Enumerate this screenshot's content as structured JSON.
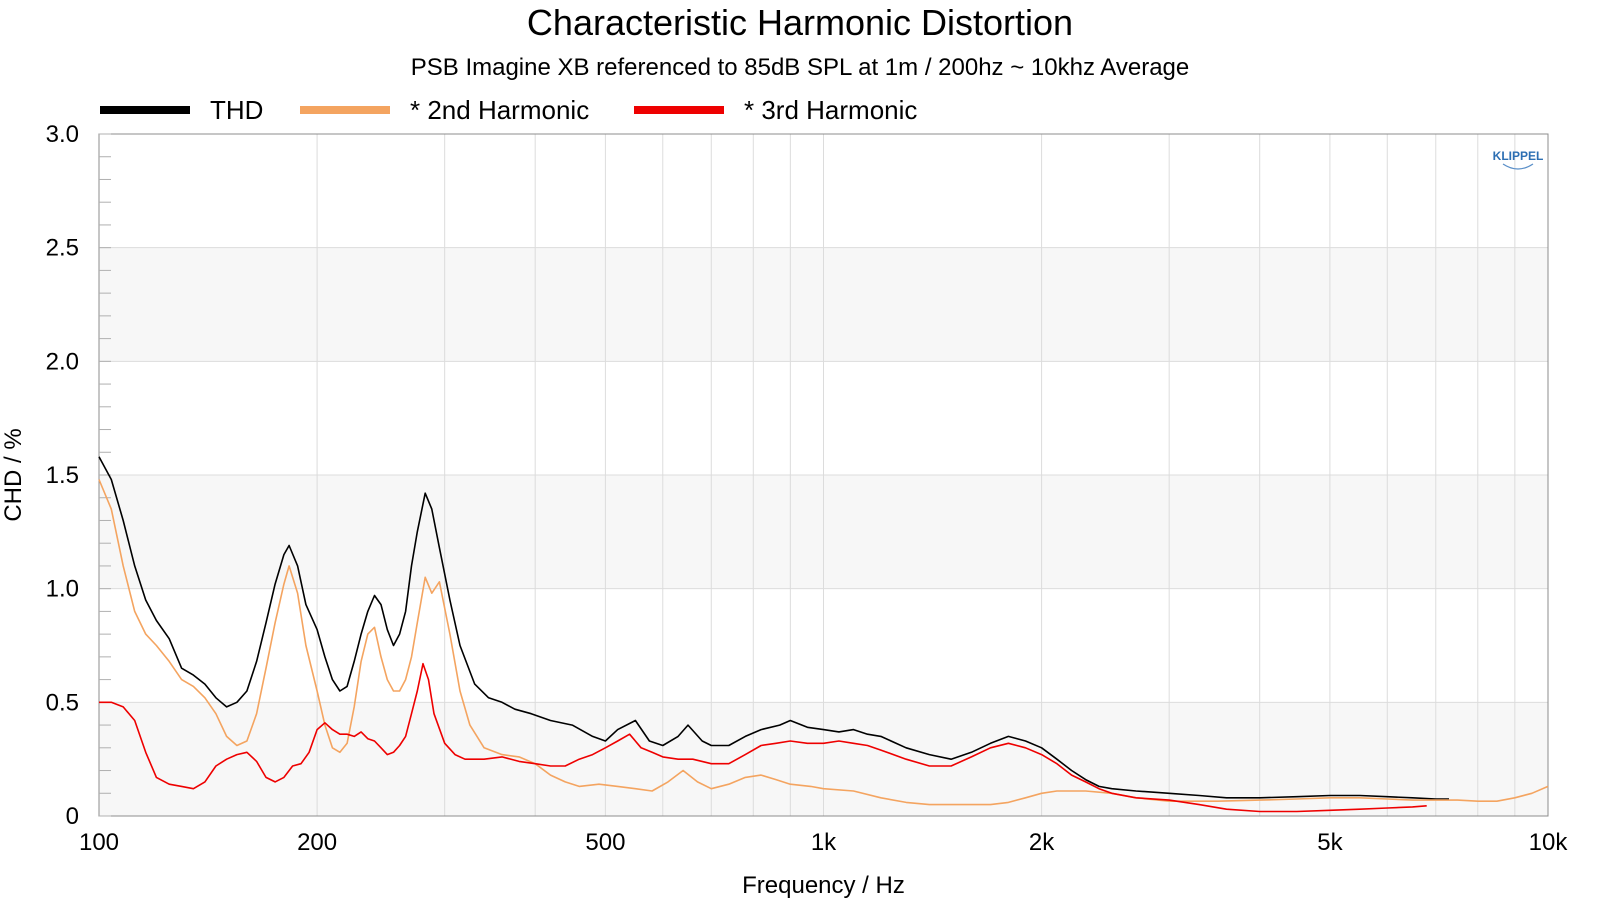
{
  "chart_data": {
    "type": "line",
    "title": "Characteristic Harmonic Distortion",
    "subtitle": "PSB Imagine XB referenced to 85dB SPL at 1m / 200hz ~ 10khz Average",
    "xlabel": "Frequency / Hz",
    "ylabel": "CHD / %",
    "xscale": "log",
    "xlim": [
      100,
      10000
    ],
    "ylim": [
      0,
      3.0
    ],
    "xticks": [
      {
        "value": 100,
        "label": "100"
      },
      {
        "value": 200,
        "label": "200"
      },
      {
        "value": 500,
        "label": "500"
      },
      {
        "value": 1000,
        "label": "1k"
      },
      {
        "value": 2000,
        "label": "2k"
      },
      {
        "value": 5000,
        "label": "5k"
      },
      {
        "value": 10000,
        "label": "10k"
      }
    ],
    "yticks": [
      {
        "value": 0,
        "label": "0"
      },
      {
        "value": 0.5,
        "label": "0.5"
      },
      {
        "value": 1.0,
        "label": "1.0"
      },
      {
        "value": 1.5,
        "label": "1.5"
      },
      {
        "value": 2.0,
        "label": "2.0"
      },
      {
        "value": 2.5,
        "label": "2.5"
      },
      {
        "value": 3.0,
        "label": "3.0"
      }
    ],
    "grid": true,
    "legend_position": "top-left",
    "logo_text": "KLIPPEL",
    "series": [
      {
        "name": "THD",
        "color": "#000000",
        "points": [
          [
            100,
            1.58
          ],
          [
            104,
            1.48
          ],
          [
            108,
            1.3
          ],
          [
            112,
            1.1
          ],
          [
            116,
            0.95
          ],
          [
            120,
            0.86
          ],
          [
            125,
            0.78
          ],
          [
            130,
            0.65
          ],
          [
            135,
            0.62
          ],
          [
            140,
            0.58
          ],
          [
            145,
            0.52
          ],
          [
            150,
            0.48
          ],
          [
            155,
            0.5
          ],
          [
            160,
            0.55
          ],
          [
            165,
            0.68
          ],
          [
            170,
            0.85
          ],
          [
            175,
            1.02
          ],
          [
            180,
            1.15
          ],
          [
            183,
            1.19
          ],
          [
            188,
            1.1
          ],
          [
            193,
            0.93
          ],
          [
            200,
            0.82
          ],
          [
            205,
            0.7
          ],
          [
            210,
            0.6
          ],
          [
            215,
            0.55
          ],
          [
            220,
            0.57
          ],
          [
            225,
            0.68
          ],
          [
            230,
            0.8
          ],
          [
            235,
            0.9
          ],
          [
            240,
            0.97
          ],
          [
            245,
            0.93
          ],
          [
            250,
            0.82
          ],
          [
            255,
            0.75
          ],
          [
            260,
            0.8
          ],
          [
            265,
            0.9
          ],
          [
            270,
            1.1
          ],
          [
            275,
            1.25
          ],
          [
            282,
            1.42
          ],
          [
            288,
            1.35
          ],
          [
            295,
            1.18
          ],
          [
            305,
            0.95
          ],
          [
            315,
            0.75
          ],
          [
            330,
            0.58
          ],
          [
            345,
            0.52
          ],
          [
            360,
            0.5
          ],
          [
            375,
            0.47
          ],
          [
            395,
            0.45
          ],
          [
            420,
            0.42
          ],
          [
            450,
            0.4
          ],
          [
            480,
            0.35
          ],
          [
            500,
            0.33
          ],
          [
            520,
            0.38
          ],
          [
            550,
            0.42
          ],
          [
            575,
            0.33
          ],
          [
            600,
            0.31
          ],
          [
            630,
            0.35
          ],
          [
            650,
            0.4
          ],
          [
            680,
            0.33
          ],
          [
            700,
            0.31
          ],
          [
            740,
            0.31
          ],
          [
            780,
            0.35
          ],
          [
            820,
            0.38
          ],
          [
            870,
            0.4
          ],
          [
            900,
            0.42
          ],
          [
            950,
            0.39
          ],
          [
            1000,
            0.38
          ],
          [
            1050,
            0.37
          ],
          [
            1100,
            0.38
          ],
          [
            1150,
            0.36
          ],
          [
            1200,
            0.35
          ],
          [
            1300,
            0.3
          ],
          [
            1400,
            0.27
          ],
          [
            1500,
            0.25
          ],
          [
            1600,
            0.28
          ],
          [
            1700,
            0.32
          ],
          [
            1800,
            0.35
          ],
          [
            1900,
            0.33
          ],
          [
            2000,
            0.3
          ],
          [
            2100,
            0.25
          ],
          [
            2200,
            0.2
          ],
          [
            2300,
            0.16
          ],
          [
            2400,
            0.13
          ],
          [
            2500,
            0.12
          ],
          [
            2700,
            0.11
          ],
          [
            3000,
            0.1
          ],
          [
            3300,
            0.09
          ],
          [
            3600,
            0.08
          ],
          [
            4000,
            0.08
          ],
          [
            4500,
            0.085
          ],
          [
            5000,
            0.09
          ],
          [
            5500,
            0.09
          ],
          [
            6000,
            0.085
          ],
          [
            6500,
            0.08
          ],
          [
            7000,
            0.075
          ],
          [
            7300,
            0.075
          ]
        ]
      },
      {
        "name": "* 2nd Harmonic",
        "color": "#f4a460",
        "points": [
          [
            100,
            1.48
          ],
          [
            104,
            1.35
          ],
          [
            108,
            1.1
          ],
          [
            112,
            0.9
          ],
          [
            116,
            0.8
          ],
          [
            120,
            0.75
          ],
          [
            125,
            0.68
          ],
          [
            130,
            0.6
          ],
          [
            135,
            0.57
          ],
          [
            140,
            0.52
          ],
          [
            145,
            0.45
          ],
          [
            150,
            0.35
          ],
          [
            155,
            0.31
          ],
          [
            160,
            0.33
          ],
          [
            165,
            0.45
          ],
          [
            170,
            0.65
          ],
          [
            175,
            0.85
          ],
          [
            180,
            1.02
          ],
          [
            183,
            1.1
          ],
          [
            188,
            0.98
          ],
          [
            193,
            0.75
          ],
          [
            200,
            0.55
          ],
          [
            205,
            0.4
          ],
          [
            210,
            0.3
          ],
          [
            215,
            0.28
          ],
          [
            220,
            0.32
          ],
          [
            225,
            0.48
          ],
          [
            230,
            0.68
          ],
          [
            235,
            0.8
          ],
          [
            240,
            0.83
          ],
          [
            245,
            0.7
          ],
          [
            250,
            0.6
          ],
          [
            255,
            0.55
          ],
          [
            260,
            0.55
          ],
          [
            265,
            0.6
          ],
          [
            270,
            0.7
          ],
          [
            275,
            0.85
          ],
          [
            282,
            1.05
          ],
          [
            288,
            0.98
          ],
          [
            295,
            1.03
          ],
          [
            305,
            0.8
          ],
          [
            315,
            0.55
          ],
          [
            325,
            0.4
          ],
          [
            340,
            0.3
          ],
          [
            360,
            0.27
          ],
          [
            380,
            0.26
          ],
          [
            400,
            0.23
          ],
          [
            420,
            0.18
          ],
          [
            440,
            0.15
          ],
          [
            460,
            0.13
          ],
          [
            490,
            0.14
          ],
          [
            520,
            0.13
          ],
          [
            550,
            0.12
          ],
          [
            580,
            0.11
          ],
          [
            610,
            0.15
          ],
          [
            640,
            0.2
          ],
          [
            670,
            0.15
          ],
          [
            700,
            0.12
          ],
          [
            740,
            0.14
          ],
          [
            780,
            0.17
          ],
          [
            820,
            0.18
          ],
          [
            860,
            0.16
          ],
          [
            900,
            0.14
          ],
          [
            960,
            0.13
          ],
          [
            1000,
            0.12
          ],
          [
            1100,
            0.11
          ],
          [
            1200,
            0.08
          ],
          [
            1300,
            0.06
          ],
          [
            1400,
            0.05
          ],
          [
            1500,
            0.05
          ],
          [
            1600,
            0.05
          ],
          [
            1700,
            0.05
          ],
          [
            1800,
            0.06
          ],
          [
            1900,
            0.08
          ],
          [
            2000,
            0.1
          ],
          [
            2100,
            0.11
          ],
          [
            2300,
            0.11
          ],
          [
            2500,
            0.1
          ],
          [
            2700,
            0.08
          ],
          [
            3000,
            0.065
          ],
          [
            3500,
            0.065
          ],
          [
            4000,
            0.07
          ],
          [
            4500,
            0.075
          ],
          [
            5000,
            0.08
          ],
          [
            5500,
            0.08
          ],
          [
            6000,
            0.075
          ],
          [
            6500,
            0.07
          ],
          [
            7000,
            0.07
          ],
          [
            7500,
            0.07
          ],
          [
            8000,
            0.065
          ],
          [
            8500,
            0.065
          ],
          [
            9000,
            0.08
          ],
          [
            9500,
            0.1
          ],
          [
            10000,
            0.13
          ]
        ]
      },
      {
        "name": "* 3rd Harmonic",
        "color": "#ee0000",
        "points": [
          [
            100,
            0.5
          ],
          [
            104,
            0.5
          ],
          [
            108,
            0.48
          ],
          [
            112,
            0.42
          ],
          [
            116,
            0.28
          ],
          [
            120,
            0.17
          ],
          [
            125,
            0.14
          ],
          [
            130,
            0.13
          ],
          [
            135,
            0.12
          ],
          [
            140,
            0.15
          ],
          [
            145,
            0.22
          ],
          [
            150,
            0.25
          ],
          [
            155,
            0.27
          ],
          [
            160,
            0.28
          ],
          [
            165,
            0.24
          ],
          [
            170,
            0.17
          ],
          [
            175,
            0.15
          ],
          [
            180,
            0.17
          ],
          [
            185,
            0.22
          ],
          [
            190,
            0.23
          ],
          [
            195,
            0.28
          ],
          [
            200,
            0.38
          ],
          [
            205,
            0.41
          ],
          [
            210,
            0.38
          ],
          [
            215,
            0.36
          ],
          [
            220,
            0.36
          ],
          [
            225,
            0.35
          ],
          [
            230,
            0.37
          ],
          [
            235,
            0.34
          ],
          [
            240,
            0.33
          ],
          [
            245,
            0.3
          ],
          [
            250,
            0.27
          ],
          [
            255,
            0.28
          ],
          [
            260,
            0.31
          ],
          [
            265,
            0.35
          ],
          [
            270,
            0.45
          ],
          [
            275,
            0.55
          ],
          [
            280,
            0.67
          ],
          [
            285,
            0.6
          ],
          [
            290,
            0.45
          ],
          [
            300,
            0.32
          ],
          [
            310,
            0.27
          ],
          [
            320,
            0.25
          ],
          [
            340,
            0.25
          ],
          [
            360,
            0.26
          ],
          [
            380,
            0.24
          ],
          [
            400,
            0.23
          ],
          [
            420,
            0.22
          ],
          [
            440,
            0.22
          ],
          [
            460,
            0.25
          ],
          [
            480,
            0.27
          ],
          [
            500,
            0.3
          ],
          [
            520,
            0.33
          ],
          [
            540,
            0.36
          ],
          [
            560,
            0.3
          ],
          [
            580,
            0.28
          ],
          [
            600,
            0.26
          ],
          [
            630,
            0.25
          ],
          [
            660,
            0.25
          ],
          [
            700,
            0.23
          ],
          [
            740,
            0.23
          ],
          [
            780,
            0.27
          ],
          [
            820,
            0.31
          ],
          [
            860,
            0.32
          ],
          [
            900,
            0.33
          ],
          [
            950,
            0.32
          ],
          [
            1000,
            0.32
          ],
          [
            1050,
            0.33
          ],
          [
            1100,
            0.32
          ],
          [
            1150,
            0.31
          ],
          [
            1200,
            0.29
          ],
          [
            1300,
            0.25
          ],
          [
            1400,
            0.22
          ],
          [
            1500,
            0.22
          ],
          [
            1600,
            0.26
          ],
          [
            1700,
            0.3
          ],
          [
            1800,
            0.32
          ],
          [
            1900,
            0.3
          ],
          [
            2000,
            0.27
          ],
          [
            2100,
            0.23
          ],
          [
            2200,
            0.18
          ],
          [
            2300,
            0.15
          ],
          [
            2400,
            0.12
          ],
          [
            2500,
            0.1
          ],
          [
            2700,
            0.08
          ],
          [
            3000,
            0.07
          ],
          [
            3300,
            0.05
          ],
          [
            3600,
            0.03
          ],
          [
            4000,
            0.02
          ],
          [
            4500,
            0.02
          ],
          [
            5000,
            0.025
          ],
          [
            5500,
            0.03
          ],
          [
            6000,
            0.035
          ],
          [
            6500,
            0.04
          ],
          [
            6800,
            0.045
          ]
        ]
      }
    ]
  }
}
